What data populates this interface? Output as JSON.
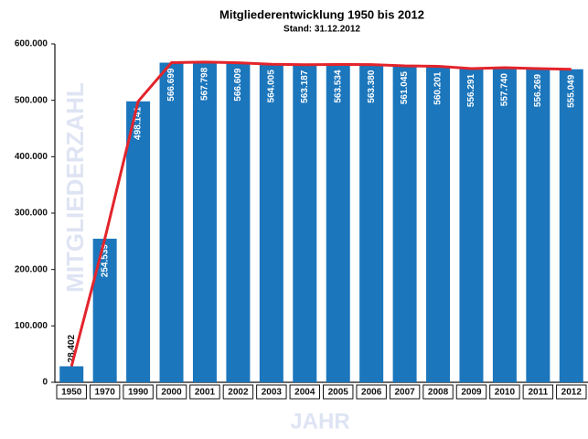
{
  "chart_data": {
    "type": "bar",
    "title": "Mitgliederentwicklung 1950 bis 2012",
    "subtitle": "Stand: 31.12.2012",
    "y_label": "MITGLIEDERZAHL",
    "x_label": "JAHR",
    "categories": [
      "1950",
      "1970",
      "1990",
      "2000",
      "2001",
      "2002",
      "2003",
      "2004",
      "2005",
      "2006",
      "2007",
      "2008",
      "2009",
      "2010",
      "2011",
      "2012"
    ],
    "values": [
      28402,
      254539,
      498141,
      566699,
      567798,
      566609,
      564005,
      563187,
      563534,
      563380,
      561045,
      560201,
      556291,
      557740,
      556269,
      555049
    ],
    "value_labels": [
      "28.402",
      "254.539",
      "498.141",
      "566.699",
      "567.798",
      "566.609",
      "564.005",
      "563.187",
      "563.534",
      "563.380",
      "561.045",
      "560.201",
      "556.291",
      "557.740",
      "556.269",
      "555.049"
    ],
    "color": "#1b76bc",
    "line_color": "#e3242b",
    "ylim": [
      0,
      600000
    ],
    "yticks": [
      {
        "value": 0,
        "label": "0"
      },
      {
        "value": 100000,
        "label": "100.000"
      },
      {
        "value": 200000,
        "label": "200.000"
      },
      {
        "value": 300000,
        "label": "300.000"
      },
      {
        "value": 400000,
        "label": "400.000"
      },
      {
        "value": 500000,
        "label": "500.000"
      },
      {
        "value": 600000,
        "label": "600.000"
      }
    ]
  }
}
